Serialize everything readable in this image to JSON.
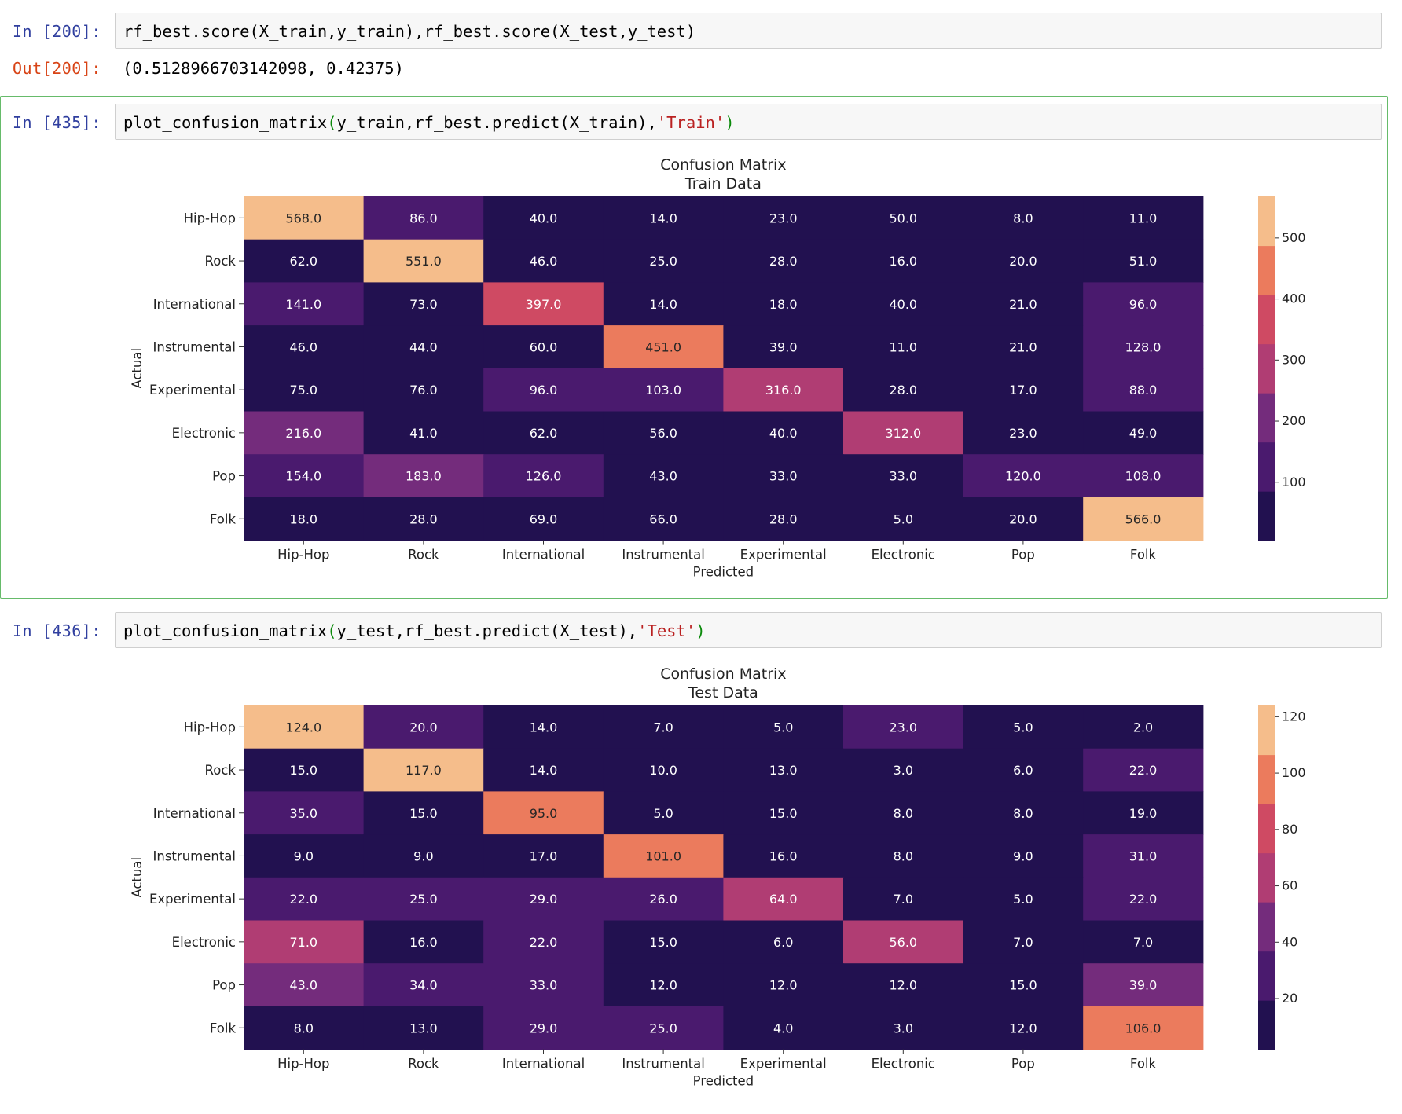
{
  "cells": [
    {
      "prompt": "In [200]:",
      "code_parts": [
        {
          "text": "rf_best.score(X_train,y_train),rf_best.score(X_test,y_test)",
          "kind": "plain"
        }
      ],
      "out_prompt": "Out[200]:",
      "output": "(0.5128966703142098, 0.42375)"
    },
    {
      "prompt": "In [435]:",
      "code_parts": [
        {
          "text": "plot_confusion_matrix",
          "kind": "plain"
        },
        {
          "text": "(",
          "kind": "paren"
        },
        {
          "text": "y_train,rf_best.predict(X_train),",
          "kind": "plain"
        },
        {
          "text": "'Train'",
          "kind": "str"
        },
        {
          "text": ")",
          "kind": "paren"
        }
      ]
    },
    {
      "prompt": "In [436]:",
      "code_parts": [
        {
          "text": "plot_confusion_matrix",
          "kind": "plain"
        },
        {
          "text": "(",
          "kind": "paren"
        },
        {
          "text": "y_test,rf_best.predict(X_test),",
          "kind": "plain"
        },
        {
          "text": "'Test'",
          "kind": "str"
        },
        {
          "text": ")",
          "kind": "paren"
        }
      ]
    }
  ],
  "chart_data": [
    {
      "type": "heatmap",
      "title": "Confusion Matrix",
      "subtitle": "Train Data",
      "xlabel": "Predicted",
      "ylabel": "Actual",
      "x_categories": [
        "Hip-Hop",
        "Rock",
        "International",
        "Instrumental",
        "Experimental",
        "Electronic",
        "Pop",
        "Folk"
      ],
      "y_categories": [
        "Hip-Hop",
        "Rock",
        "International",
        "Instrumental",
        "Experimental",
        "Electronic",
        "Pop",
        "Folk"
      ],
      "values": [
        [
          568.0,
          86.0,
          40.0,
          14.0,
          23.0,
          50.0,
          8.0,
          11.0
        ],
        [
          62.0,
          551.0,
          46.0,
          25.0,
          28.0,
          16.0,
          20.0,
          51.0
        ],
        [
          141.0,
          73.0,
          397.0,
          14.0,
          18.0,
          40.0,
          21.0,
          96.0
        ],
        [
          46.0,
          44.0,
          60.0,
          451.0,
          39.0,
          11.0,
          21.0,
          128.0
        ],
        [
          75.0,
          76.0,
          96.0,
          103.0,
          316.0,
          28.0,
          17.0,
          88.0
        ],
        [
          216.0,
          41.0,
          62.0,
          56.0,
          40.0,
          312.0,
          23.0,
          49.0
        ],
        [
          154.0,
          183.0,
          126.0,
          43.0,
          33.0,
          33.0,
          120.0,
          108.0
        ],
        [
          18.0,
          28.0,
          69.0,
          66.0,
          28.0,
          5.0,
          20.0,
          566.0
        ]
      ],
      "colorbar_ticks": [
        100,
        200,
        300,
        400,
        500
      ],
      "colorscale": "magma",
      "colors": [
        "#221150",
        "#4a1a6e",
        "#742c7c",
        "#b03d73",
        "#cf4a63",
        "#eb7b5d",
        "#f5bd8b"
      ]
    },
    {
      "type": "heatmap",
      "title": "Confusion Matrix",
      "subtitle": "Test Data",
      "xlabel": "Predicted",
      "ylabel": "Actual",
      "x_categories": [
        "Hip-Hop",
        "Rock",
        "International",
        "Instrumental",
        "Experimental",
        "Electronic",
        "Pop",
        "Folk"
      ],
      "y_categories": [
        "Hip-Hop",
        "Rock",
        "International",
        "Instrumental",
        "Experimental",
        "Electronic",
        "Pop",
        "Folk"
      ],
      "values": [
        [
          124.0,
          20.0,
          14.0,
          7.0,
          5.0,
          23.0,
          5.0,
          2.0
        ],
        [
          15.0,
          117.0,
          14.0,
          10.0,
          13.0,
          3.0,
          6.0,
          22.0
        ],
        [
          35.0,
          15.0,
          95.0,
          5.0,
          15.0,
          8.0,
          8.0,
          19.0
        ],
        [
          9.0,
          9.0,
          17.0,
          101.0,
          16.0,
          8.0,
          9.0,
          31.0
        ],
        [
          22.0,
          25.0,
          29.0,
          26.0,
          64.0,
          7.0,
          5.0,
          22.0
        ],
        [
          71.0,
          16.0,
          22.0,
          15.0,
          6.0,
          56.0,
          7.0,
          7.0
        ],
        [
          43.0,
          34.0,
          33.0,
          12.0,
          12.0,
          12.0,
          15.0,
          39.0
        ],
        [
          8.0,
          13.0,
          29.0,
          25.0,
          4.0,
          3.0,
          12.0,
          106.0
        ]
      ],
      "colorbar_ticks": [
        20,
        40,
        60,
        80,
        100,
        120
      ],
      "colorscale": "magma",
      "colors": [
        "#221150",
        "#4a1a6e",
        "#742c7c",
        "#b03d73",
        "#cf4a63",
        "#eb7b5d",
        "#f5bd8b"
      ]
    }
  ]
}
